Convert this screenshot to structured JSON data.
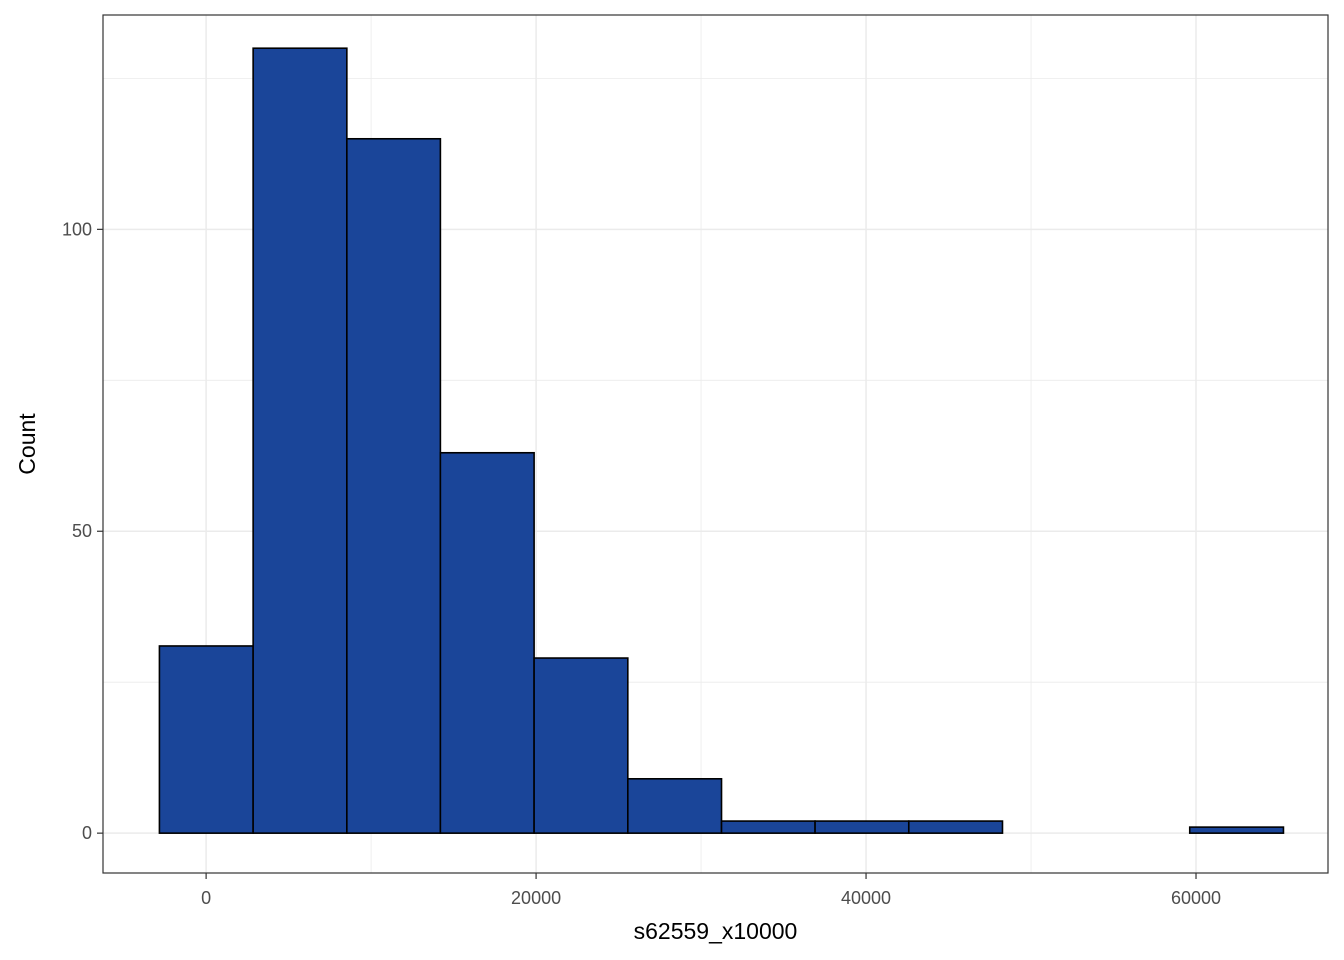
{
  "chart_data": {
    "type": "bar",
    "subtype": "histogram",
    "title": "",
    "xlabel": "s62559_x10000",
    "ylabel": "Count",
    "xlim": [
      -6250,
      68000
    ],
    "ylim": [
      -6.6,
      135.5
    ],
    "x_ticks": [
      0,
      20000,
      40000,
      60000
    ],
    "y_ticks": [
      0,
      50,
      100
    ],
    "x_minor_ticks": [
      10000,
      30000,
      50000
    ],
    "y_minor_ticks": [
      25,
      75,
      125
    ],
    "grid": true,
    "legend": "none",
    "bins": [
      {
        "x0": -2830,
        "x1": 2850,
        "count": 31
      },
      {
        "x0": 2850,
        "x1": 8530,
        "count": 130
      },
      {
        "x0": 8530,
        "x1": 14200,
        "count": 115
      },
      {
        "x0": 14200,
        "x1": 19880,
        "count": 63
      },
      {
        "x0": 19880,
        "x1": 25560,
        "count": 29
      },
      {
        "x0": 25560,
        "x1": 31240,
        "count": 9
      },
      {
        "x0": 31240,
        "x1": 36910,
        "count": 2
      },
      {
        "x0": 36910,
        "x1": 42590,
        "count": 2
      },
      {
        "x0": 42590,
        "x1": 48270,
        "count": 2
      },
      {
        "x0": 48270,
        "x1": 53950,
        "count": 0
      },
      {
        "x0": 53950,
        "x1": 59620,
        "count": 0
      },
      {
        "x0": 59620,
        "x1": 65300,
        "count": 1
      }
    ],
    "colors": {
      "fill": "#1a4599",
      "outline": "#000000",
      "grid": "#ebebeb",
      "panel_border": "#333333"
    }
  }
}
